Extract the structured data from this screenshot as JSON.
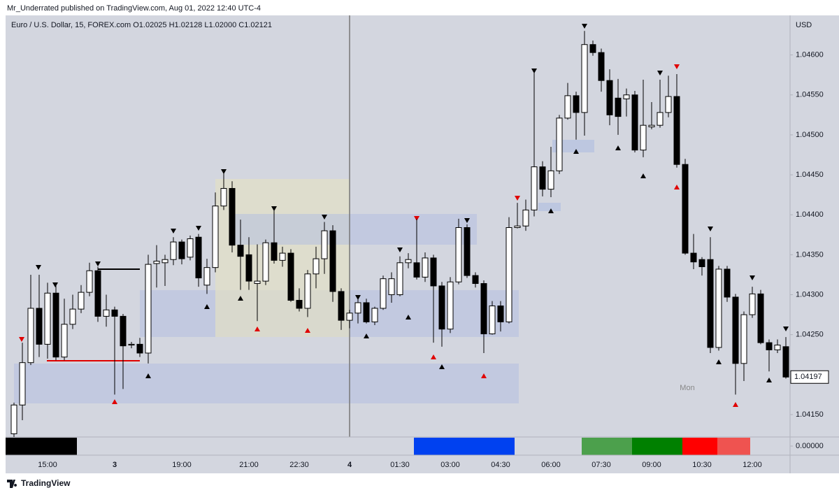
{
  "header": {
    "published": "Mr_Underrated published on TradingView.com, Aug 01, 2022 12:40 UTC-4",
    "footer": "TradingView"
  },
  "chart_data": {
    "type": "candlestick",
    "title": "Euro / U.S. Dollar, 15, FOREX.com  O1.02025  H1.02128  L1.02000  C1.02121",
    "currency": "USD",
    "annotation": "Mon",
    "categories": [
      null,
      null,
      null,
      null,
      "15:00",
      null,
      null,
      null,
      null,
      null,
      null,
      null,
      "3",
      null,
      null,
      null,
      null,
      null,
      null,
      null,
      "19:00",
      null,
      null,
      null,
      null,
      null,
      null,
      null,
      "21:00",
      null,
      null,
      null,
      null,
      null,
      "22:30",
      null,
      null,
      null,
      null,
      null,
      "4",
      null,
      null,
      null,
      null,
      null,
      "01:30",
      null,
      null,
      null,
      null,
      null,
      "03:00",
      null,
      null,
      null,
      null,
      null,
      "04:30",
      null,
      null,
      null,
      null,
      null,
      "06:00",
      null,
      null,
      null,
      null,
      null,
      "07:30",
      null,
      null,
      null,
      null,
      null,
      "09:00",
      null,
      null,
      null,
      null,
      null,
      "10:30",
      null,
      null,
      null,
      null,
      null,
      "12:00",
      null,
      null,
      null,
      null
    ],
    "open": [
      1.04126,
      1.04162,
      1.04215,
      1.04283,
      1.04238,
      1.04302,
      1.04222,
      1.04263,
      1.04282,
      1.04303,
      1.0433,
      1.04273,
      1.04281,
      1.04273,
      1.04237,
      1.04238,
      1.04227,
      1.04339,
      1.0434,
      1.04344,
      1.04366,
      1.04347,
      1.04372,
      1.04312,
      1.04334,
      1.04411,
      1.04433,
      1.04362,
      1.0435,
      1.04314,
      1.04317,
      1.04365,
      1.04343,
      1.04352,
      1.04293,
      1.04283,
      1.04326,
      1.04345,
      1.0438,
      1.04304,
      1.04268,
      1.04277,
      1.0429,
      1.04266,
      1.04283,
      1.043,
      1.043,
      1.0434,
      1.0434,
      1.04322,
      1.04346,
      1.04311,
      1.04257,
      1.04316,
      1.04384,
      1.04324,
      1.04314,
      1.04251,
      1.04286,
      1.04266,
      1.04384,
      1.04386,
      1.04406,
      1.0446,
      1.04432,
      1.04455,
      1.04521,
      1.04549,
      1.04528,
      1.04613,
      1.04603,
      1.04568,
      1.04546,
      1.04545,
      1.0455,
      1.04481,
      1.0451,
      1.04512,
      1.04528,
      1.04548,
      1.04463,
      1.04352,
      1.04344,
      1.04344,
      1.04234,
      1.04332,
      1.04297,
      1.04214,
      1.04275,
      1.04301,
      1.0424,
      1.04231,
      1.04235
    ],
    "high": [
      1.04165,
      1.0424,
      1.04325,
      1.04325,
      1.04315,
      1.04314,
      1.04295,
      1.043,
      1.04312,
      1.0434,
      1.04335,
      1.043,
      1.04285,
      1.04276,
      1.04241,
      1.04246,
      1.0435,
      1.04362,
      1.0435,
      1.04372,
      1.04369,
      1.04374,
      1.04376,
      1.04345,
      1.04428,
      1.04452,
      1.04442,
      1.04394,
      1.04372,
      1.04363,
      1.04369,
      1.04407,
      1.0436,
      1.04357,
      1.04308,
      1.04331,
      1.0436,
      1.04391,
      1.04387,
      1.04308,
      1.04281,
      1.04295,
      1.04295,
      1.04285,
      1.04324,
      1.04328,
      1.04348,
      1.04352,
      1.04395,
      1.04353,
      1.0435,
      1.04316,
      1.04322,
      1.04395,
      1.04388,
      1.04328,
      1.04318,
      1.04292,
      1.04292,
      1.04397,
      1.04415,
      1.04419,
      1.04583,
      1.04467,
      1.04485,
      1.04525,
      1.04565,
      1.04554,
      1.0463,
      1.04618,
      1.04608,
      1.04582,
      1.0457,
      1.04558,
      1.04555,
      1.04569,
      1.04541,
      1.04569,
      1.04574,
      1.04576,
      1.0447,
      1.04376,
      1.04347,
      1.04372,
      1.04336,
      1.04336,
      1.04301,
      1.04279,
      1.0431,
      1.04306,
      1.04244,
      1.04244,
      1.04247
    ],
    "low": [
      1.04122,
      1.04143,
      1.04212,
      1.04222,
      1.0422,
      1.04218,
      1.04218,
      1.04257,
      1.04277,
      1.04298,
      1.04266,
      1.0426,
      1.04175,
      1.04182,
      1.04233,
      1.04222,
      1.04214,
      1.04309,
      1.04311,
      1.04337,
      1.04338,
      1.04343,
      1.0431,
      1.04301,
      1.04328,
      1.04406,
      1.04353,
      1.04306,
      1.04306,
      1.04267,
      1.04312,
      1.04339,
      1.04335,
      1.04291,
      1.04279,
      1.04272,
      1.04308,
      1.04326,
      1.04291,
      1.04256,
      1.04258,
      1.04264,
      1.04264,
      1.04262,
      1.04281,
      1.0429,
      1.04298,
      1.04333,
      1.04319,
      1.04316,
      1.0424,
      1.04235,
      1.04252,
      1.04313,
      1.04321,
      1.04309,
      1.04227,
      1.0425,
      1.04254,
      1.04264,
      1.04383,
      1.0438,
      1.04398,
      1.04423,
      1.04422,
      1.04451,
      1.04519,
      1.04494,
      1.04499,
      1.04599,
      1.04554,
      1.04512,
      1.045,
      1.04523,
      1.04478,
      1.04472,
      1.04507,
      1.04509,
      1.04522,
      1.04459,
      1.0435,
      1.04332,
      1.04324,
      1.04227,
      1.0423,
      1.04291,
      1.04175,
      1.04192,
      1.04271,
      1.04238,
      1.04204,
      1.04227,
      1.04195
    ],
    "close": [
      1.04162,
      1.04215,
      1.04283,
      1.04238,
      1.04302,
      1.04222,
      1.04263,
      1.04282,
      1.04303,
      1.0433,
      1.04273,
      1.04281,
      1.04273,
      1.04236,
      1.04238,
      1.04227,
      1.04338,
      1.04342,
      1.04344,
      1.04366,
      1.04345,
      1.0437,
      1.04321,
      1.04334,
      1.04411,
      1.04433,
      1.04362,
      1.04348,
      1.04317,
      1.04317,
      1.04365,
      1.04343,
      1.04352,
      1.04293,
      1.04283,
      1.04326,
      1.04345,
      1.0438,
      1.04304,
      1.04268,
      1.04277,
      1.0429,
      1.04266,
      1.04283,
      1.0432,
      1.0432,
      1.0434,
      1.04344,
      1.04322,
      1.04346,
      1.04311,
      1.04257,
      1.04316,
      1.04384,
      1.04324,
      1.04314,
      1.04251,
      1.04286,
      1.04266,
      1.04384,
      1.04386,
      1.04406,
      1.0446,
      1.04432,
      1.04455,
      1.04521,
      1.04549,
      1.04528,
      1.04613,
      1.04603,
      1.04568,
      1.04525,
      1.04523,
      1.0455,
      1.04481,
      1.04512,
      1.04512,
      1.04528,
      1.04548,
      1.04463,
      1.04352,
      1.04341,
      1.04335,
      1.04234,
      1.04332,
      1.04297,
      1.04214,
      1.04275,
      1.04301,
      1.0424,
      1.04231,
      1.04237,
      1.04197
    ],
    "up_color": "#ffffff",
    "down_color": "#000000",
    "grid": false,
    "last_price_label": "1.04197",
    "ylim": [
      1.04122,
      1.04653
    ],
    "yticks": [
      {
        "value": 1.0415,
        "label": "1.04150"
      },
      {
        "value": 1.042,
        "label": "1.04200"
      },
      {
        "value": 1.0425,
        "label": "1.04250"
      },
      {
        "value": 1.043,
        "label": "1.04300"
      },
      {
        "value": 1.0435,
        "label": "1.04350"
      },
      {
        "value": 1.044,
        "label": "1.04400"
      },
      {
        "value": 1.0445,
        "label": "1.04450"
      },
      {
        "value": 1.045,
        "label": "1.04500"
      },
      {
        "value": 1.0455,
        "label": "1.04550"
      },
      {
        "value": 1.046,
        "label": "1.04600"
      }
    ],
    "indicator_ytick": {
      "value": 0,
      "label": "0.00000"
    }
  }
}
